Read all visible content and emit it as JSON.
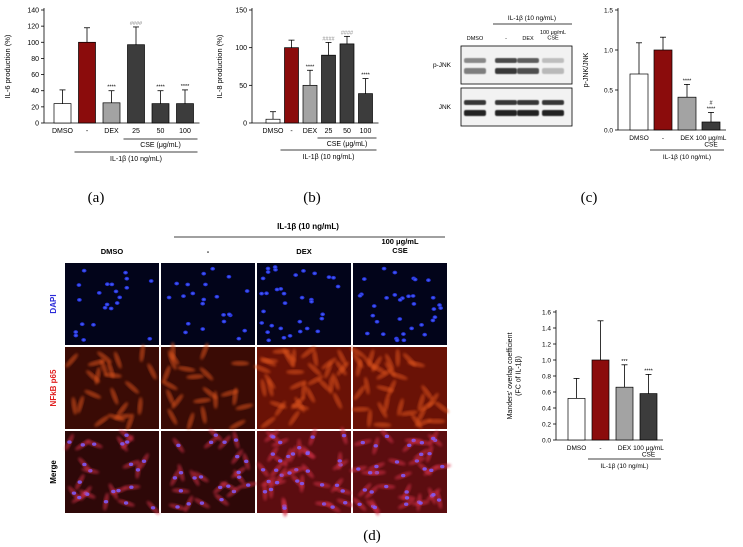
{
  "panels": {
    "a": "(a)",
    "b": "(b)",
    "c": "(c)",
    "d": "(d)"
  },
  "chart_data": [
    {
      "id": "a",
      "type": "bar",
      "ylabel": "IL-6 production (%)",
      "ylim": [
        0,
        140
      ],
      "yticks": [
        0,
        20,
        40,
        60,
        80,
        100,
        120,
        140
      ],
      "categories": [
        "DMSO",
        "-",
        "DEX",
        "25",
        "50",
        "100"
      ],
      "values": [
        24,
        100,
        25,
        97,
        24,
        24
      ],
      "errors": [
        17,
        18,
        15,
        22,
        16,
        17
      ],
      "colors": [
        "#ffffff",
        "#8b0c0c",
        "#a3a3a3",
        "#3c3c3c",
        "#3c3c3c",
        "#3c3c3c"
      ],
      "annotations": [
        "",
        "",
        "****",
        "####",
        "****",
        "****"
      ],
      "group_labels": [
        "CSE (μg/mL)",
        "IL-1β (10 ng/mL)"
      ]
    },
    {
      "id": "b",
      "type": "bar",
      "ylabel": "IL-8 production (%)",
      "ylim": [
        0,
        150
      ],
      "yticks": [
        0,
        50,
        100,
        150
      ],
      "categories": [
        "DMSO",
        "-",
        "DEX",
        "25",
        "50",
        "100"
      ],
      "values": [
        5,
        100,
        50,
        90,
        105,
        39
      ],
      "errors": [
        10,
        10,
        20,
        17,
        10,
        20
      ],
      "colors": [
        "#ffffff",
        "#8b0c0c",
        "#a3a3a3",
        "#3c3c3c",
        "#3c3c3c",
        "#3c3c3c"
      ],
      "annotations": [
        "",
        "",
        "****",
        "####",
        "####",
        "****"
      ],
      "group_labels": [
        "CSE (μg/mL)",
        "IL-1β (10 ng/mL)"
      ]
    },
    {
      "id": "c",
      "type": "bar",
      "ylabel": "p-JNK/JNK",
      "ylim": [
        0,
        1.5
      ],
      "yticks": [
        "0.0",
        "0.5",
        "1.0",
        "1.5"
      ],
      "categories": [
        "DMSO",
        "-",
        "DEX",
        "100 μg/mL\nCSE"
      ],
      "values": [
        0.7,
        1.0,
        0.41,
        0.1
      ],
      "errors": [
        0.39,
        0.16,
        0.16,
        0.12
      ],
      "colors": [
        "#ffffff",
        "#8b0c0c",
        "#a3a3a3",
        "#3c3c3c"
      ],
      "annotations": [
        "",
        "",
        "****",
        "#\n****"
      ],
      "group_labels": [
        "IL-1β (10 ng/mL)"
      ]
    },
    {
      "id": "d",
      "type": "bar",
      "ylabel": "Manders' overlap coefficient\n(FC of IL-1β)",
      "ylim": [
        0,
        1.6
      ],
      "yticks": [
        "0.0",
        "0.2",
        "0.4",
        "0.6",
        "0.8",
        "1.0",
        "1.2",
        "1.4",
        "1.6"
      ],
      "categories": [
        "DMSO",
        "-",
        "DEX",
        "100 μg/mL\nCSE"
      ],
      "values": [
        0.52,
        1.0,
        0.66,
        0.58
      ],
      "errors": [
        0.25,
        0.49,
        0.28,
        0.24
      ],
      "colors": [
        "#ffffff",
        "#8b0c0c",
        "#a3a3a3",
        "#3c3c3c"
      ],
      "annotations": [
        "",
        "",
        "***",
        "****"
      ],
      "group_labels": [
        "IL-1β (10 ng/mL)"
      ]
    }
  ],
  "blot": {
    "header": "IL-1β (10 ng/mL)",
    "lanes": [
      "DMSO",
      "-",
      "DEX",
      "100 μg/mL\nCSE"
    ],
    "rows": [
      "p-JNK",
      "JNK"
    ],
    "intensity": [
      [
        0.55,
        0.85,
        0.75,
        0.3
      ],
      [
        0.95,
        0.95,
        0.95,
        0.95
      ]
    ]
  },
  "micrograph": {
    "header": "IL-1β (10 ng/mL)",
    "columns": [
      "DMSO",
      "-",
      "DEX",
      "100 μg/mL\nCSE"
    ],
    "rows": [
      {
        "label": "DAPI",
        "color": "#2b2bd9"
      },
      {
        "label": "NFkB p65",
        "color": "#e02020"
      },
      {
        "label": "Merge",
        "color": "#000000"
      }
    ]
  }
}
